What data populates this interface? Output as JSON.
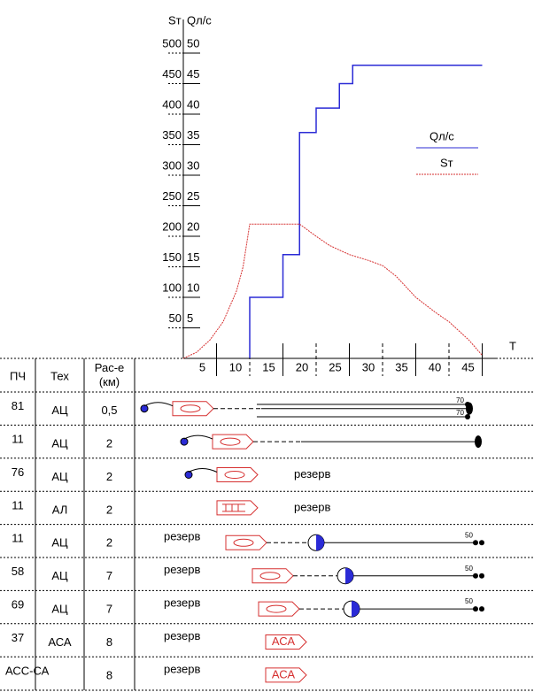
{
  "chart_data": {
    "type": "line",
    "y_label": "Sт",
    "y2_label": "Qл/с",
    "x_label": "Т",
    "xlim": [
      0,
      47
    ],
    "xticks": [
      5,
      10,
      15,
      20,
      25,
      30,
      35,
      40,
      45
    ],
    "ylim": [
      0,
      500
    ],
    "yticks": [
      50,
      100,
      150,
      200,
      250,
      300,
      350,
      400,
      450,
      500
    ],
    "y2lim": [
      0,
      50
    ],
    "y2ticks": [
      5,
      10,
      15,
      20,
      25,
      30,
      35,
      40,
      45,
      50
    ],
    "legend": "right",
    "series": [
      {
        "name": "Qл/с",
        "color": "#2b2bd6",
        "axis": "y2",
        "x": [
          10,
          10,
          15,
          15,
          17.5,
          17.5,
          20,
          20,
          23.5,
          23.5,
          25.5,
          25.5,
          45
        ],
        "values": [
          0,
          10,
          10,
          17,
          17,
          37,
          37,
          41,
          41,
          45,
          45,
          48,
          48
        ]
      },
      {
        "name": "Sт",
        "color": "#d63030",
        "x": [
          0,
          2,
          4,
          6,
          8,
          9,
          10,
          17.5,
          20,
          22,
          25,
          28,
          30,
          32,
          35,
          38,
          40,
          43,
          45
        ],
        "values": [
          0,
          10,
          30,
          60,
          110,
          150,
          220,
          220,
          200,
          185,
          170,
          160,
          152,
          135,
          100,
          75,
          60,
          30,
          5
        ]
      }
    ]
  },
  "table": {
    "header": [
      "ПЧ",
      "Тех",
      "Рас-е (км)"
    ],
    "rows": [
      {
        "cells": [
          "81",
          "АЦ",
          "0,5"
        ],
        "flow": [
          "70",
          "70"
        ]
      },
      {
        "cells": [
          "11",
          "АЦ",
          "2"
        ]
      },
      {
        "cells": [
          "76",
          "АЦ",
          "2"
        ],
        "note": "резерв"
      },
      {
        "cells": [
          "11",
          "АЛ",
          "2"
        ],
        "note": "резерв"
      },
      {
        "cells": [
          "11",
          "АЦ",
          "2"
        ],
        "note": "резерв",
        "flow": [
          "50"
        ]
      },
      {
        "cells": [
          "58",
          "АЦ",
          "7"
        ],
        "note": "резерв",
        "flow": [
          "50"
        ]
      },
      {
        "cells": [
          "69",
          "АЦ",
          "7"
        ],
        "note": "резерв",
        "flow": [
          "50"
        ]
      },
      {
        "cells": [
          "37",
          "АСА",
          "8"
        ],
        "note": "резерв",
        "vehicle": "АСА"
      },
      {
        "cells": [
          "АСС-СА",
          "",
          "8"
        ],
        "note": "резерв",
        "vehicle": "АСА"
      }
    ]
  }
}
